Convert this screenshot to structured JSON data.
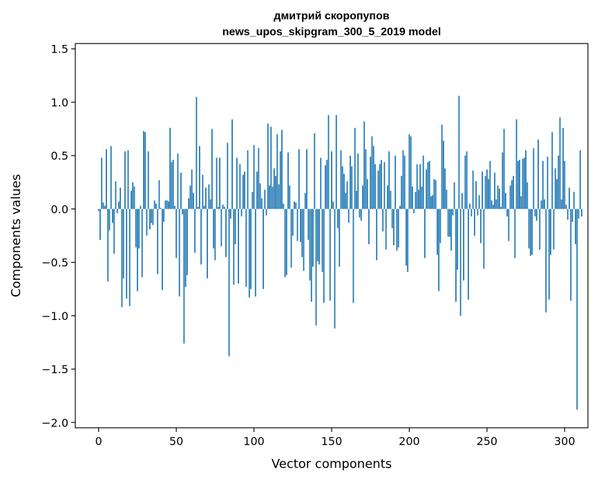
{
  "chart_data": {
    "type": "bar",
    "title_line1": "дмитрий скоропупов",
    "title_line2": "news_upos_skipgram_300_5_2019 model",
    "xlabel": "Vector components",
    "ylabel": "Components values",
    "xlim": [
      -15,
      315
    ],
    "ylim": [
      -2.05,
      1.55
    ],
    "xticks": [
      0,
      50,
      100,
      150,
      200,
      250,
      300
    ],
    "xtick_labels": [
      "0",
      "50",
      "100",
      "150",
      "200",
      "250",
      "300"
    ],
    "yticks": [
      1.5,
      1.0,
      0.5,
      0.0,
      -0.5,
      -1.0,
      -1.5,
      -2.0
    ],
    "ytick_labels": [
      "1.5",
      "1.0",
      "0.5",
      "0.0",
      "−0.5",
      "−1.0",
      "−1.5",
      "−2.0"
    ],
    "grid": false,
    "bar_color": "#1f77b4",
    "values": [
      -0.02,
      -0.29,
      0.48,
      0.06,
      0.03,
      0.56,
      -0.68,
      -0.2,
      0.59,
      -0.13,
      -0.42,
      0.26,
      -0.04,
      0.07,
      0.2,
      -0.92,
      -0.65,
      0.54,
      -0.84,
      0.55,
      -0.91,
      0.17,
      0.25,
      0.21,
      -0.36,
      -0.77,
      -0.37,
      0.03,
      -0.64,
      0.73,
      0.72,
      -0.25,
      0.54,
      -0.19,
      -0.13,
      -0.15,
      0.08,
      0.05,
      -0.61,
      0.27,
      0.01,
      -0.76,
      -0.12,
      0.08,
      0.08,
      0.07,
      0.76,
      0.44,
      0.46,
      0.03,
      -0.46,
      0.52,
      -0.82,
      0.34,
      -0.05,
      -1.26,
      -0.73,
      -0.62,
      0.1,
      0.22,
      0.37,
      0.15,
      -0.41,
      1.05,
      0.02,
      0.59,
      -0.52,
      0.32,
      0.03,
      0.2,
      -0.65,
      0.23,
      0.09,
      0.75,
      -0.37,
      -0.48,
      0.48,
      0.02,
      0.48,
      -0.35,
      0.04,
      0.02,
      -0.45,
      0.62,
      -1.38,
      -0.09,
      0.84,
      -0.71,
      -0.33,
      0.48,
      -0.7,
      0.42,
      -0.07,
      0.32,
      0.35,
      -0.73,
      0.55,
      -0.83,
      -0.75,
      0.16,
      0.6,
      -0.82,
      0.35,
      0.57,
      0.24,
      0.1,
      -0.75,
      0.18,
      -0.06,
      0.8,
      0.22,
      0.77,
      0.21,
      0.38,
      0.31,
      0.7,
      0.23,
      0.54,
      0.74,
      0.05,
      -0.64,
      -0.62,
      0.53,
      0.22,
      -0.55,
      -0.25,
      0.07,
      0.06,
      -0.3,
      0.56,
      -0.31,
      -0.45,
      -0.58,
      0.15,
      0.56,
      -0.29,
      -0.67,
      -0.87,
      -0.54,
      0.71,
      -1.09,
      -0.49,
      -0.52,
      0.48,
      -0.59,
      -0.88,
      0.41,
      0.46,
      0.88,
      -0.86,
      0.54,
      0.07,
      -1.12,
      0.88,
      -0.18,
      -0.54,
      0.55,
      0.4,
      0.33,
      0.15,
      0.26,
      -0.13,
      0.5,
      0.4,
      -0.88,
      0.76,
      0.17,
      0.52,
      -0.08,
      -0.11,
      0.22,
      0.82,
      0.56,
      0.28,
      -0.33,
      0.49,
      0.68,
      0.59,
      0.42,
      -0.48,
      0.36,
      0.42,
      0.46,
      -0.21,
      0.44,
      -0.38,
      0.22,
      0.54,
      0.17,
      -0.18,
      -0.34,
      0.5,
      -0.39,
      -0.36,
      0.03,
      0.31,
      0.55,
      0.5,
      -0.53,
      -0.59,
      0.7,
      0.68,
      0.21,
      -0.04,
      0.16,
      0.42,
      0.18,
      0.42,
      0.21,
      0.5,
      -0.46,
      0.37,
      0.44,
      0.45,
      0.12,
      0.13,
      0.28,
      0.27,
      -0.43,
      -0.77,
      -0.32,
      0.79,
      0.64,
      0.38,
      0.18,
      -0.26,
      -0.26,
      -0.39,
      -0.06,
      0.25,
      -0.87,
      -0.57,
      1.06,
      -1.0,
      0.15,
      -0.67,
      0.5,
      0.54,
      -0.85,
      0.05,
      -0.07,
      0.36,
      -0.25,
      0.26,
      -0.06,
      0.13,
      -0.32,
      0.35,
      -0.56,
      0.31,
      0.37,
      0.28,
      0.45,
      0.08,
      0.04,
      0.34,
      0.09,
      0.22,
      0.19,
      0.02,
      0.53,
      0.75,
      0.15,
      -0.07,
      -0.3,
      0.22,
      0.27,
      0.31,
      -0.46,
      0.84,
      0.45,
      0.46,
      0.12,
      0.47,
      0.48,
      0.55,
      0.25,
      -0.37,
      -0.44,
      -0.43,
      0.57,
      -0.07,
      -0.11,
      0.65,
      -0.38,
      0.08,
      0.45,
      0.09,
      -0.97,
      0.49,
      -0.85,
      -0.43,
      0.72,
      -0.38,
      0.38,
      0.28,
      0.5,
      0.86,
      0.09,
      0.76,
      0.45,
      0.04,
      -0.1,
      0.2,
      -0.86,
      -0.12,
      0.16,
      -0.33,
      -1.88,
      -0.09,
      0.55,
      -0.07
    ]
  }
}
